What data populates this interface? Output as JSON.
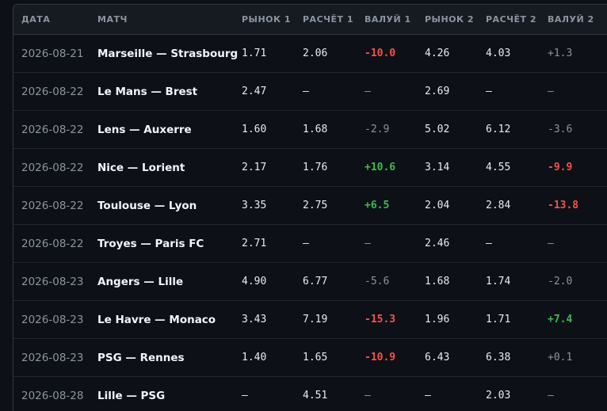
{
  "table": {
    "headers": [
      "ДАТА",
      "МАТЧ",
      "РЫНОК 1",
      "РАСЧЁТ 1",
      "ВАЛУЙ 1",
      "РЫНОК 2",
      "РАСЧЁТ 2",
      "ВАЛУЙ 2"
    ],
    "rows": [
      [
        "2026-08-21",
        "Marseille — Strasbourg",
        "1.71",
        "2.06",
        "-10.0",
        "4.26",
        "4.03",
        "+1.3"
      ],
      [
        "2026-08-22",
        "Le Mans — Brest",
        "2.47",
        "–",
        "—",
        "2.69",
        "–",
        "—"
      ],
      [
        "2026-08-22",
        "Lens — Auxerre",
        "1.60",
        "1.68",
        "-2.9",
        "5.02",
        "6.12",
        "-3.6"
      ],
      [
        "2026-08-22",
        "Nice — Lorient",
        "2.17",
        "1.76",
        "+10.6",
        "3.14",
        "4.55",
        "-9.9"
      ],
      [
        "2026-08-22",
        "Toulouse — Lyon",
        "3.35",
        "2.75",
        "+6.5",
        "2.04",
        "2.84",
        "-13.8"
      ],
      [
        "2026-08-22",
        "Troyes — Paris FC",
        "2.71",
        "–",
        "—",
        "2.46",
        "–",
        "—"
      ],
      [
        "2026-08-23",
        "Angers — Lille",
        "4.90",
        "6.77",
        "-5.6",
        "1.68",
        "1.74",
        "-2.0"
      ],
      [
        "2026-08-23",
        "Le Havre — Monaco",
        "3.43",
        "7.19",
        "-15.3",
        "1.96",
        "1.71",
        "+7.4"
      ],
      [
        "2026-08-23",
        "PSG — Rennes",
        "1.40",
        "1.65",
        "-10.9",
        "6.43",
        "6.38",
        "+0.1"
      ],
      [
        "2026-08-28",
        "Lille — PSG",
        "–",
        "4.51",
        "—",
        "–",
        "2.03",
        "—"
      ]
    ]
  }
}
